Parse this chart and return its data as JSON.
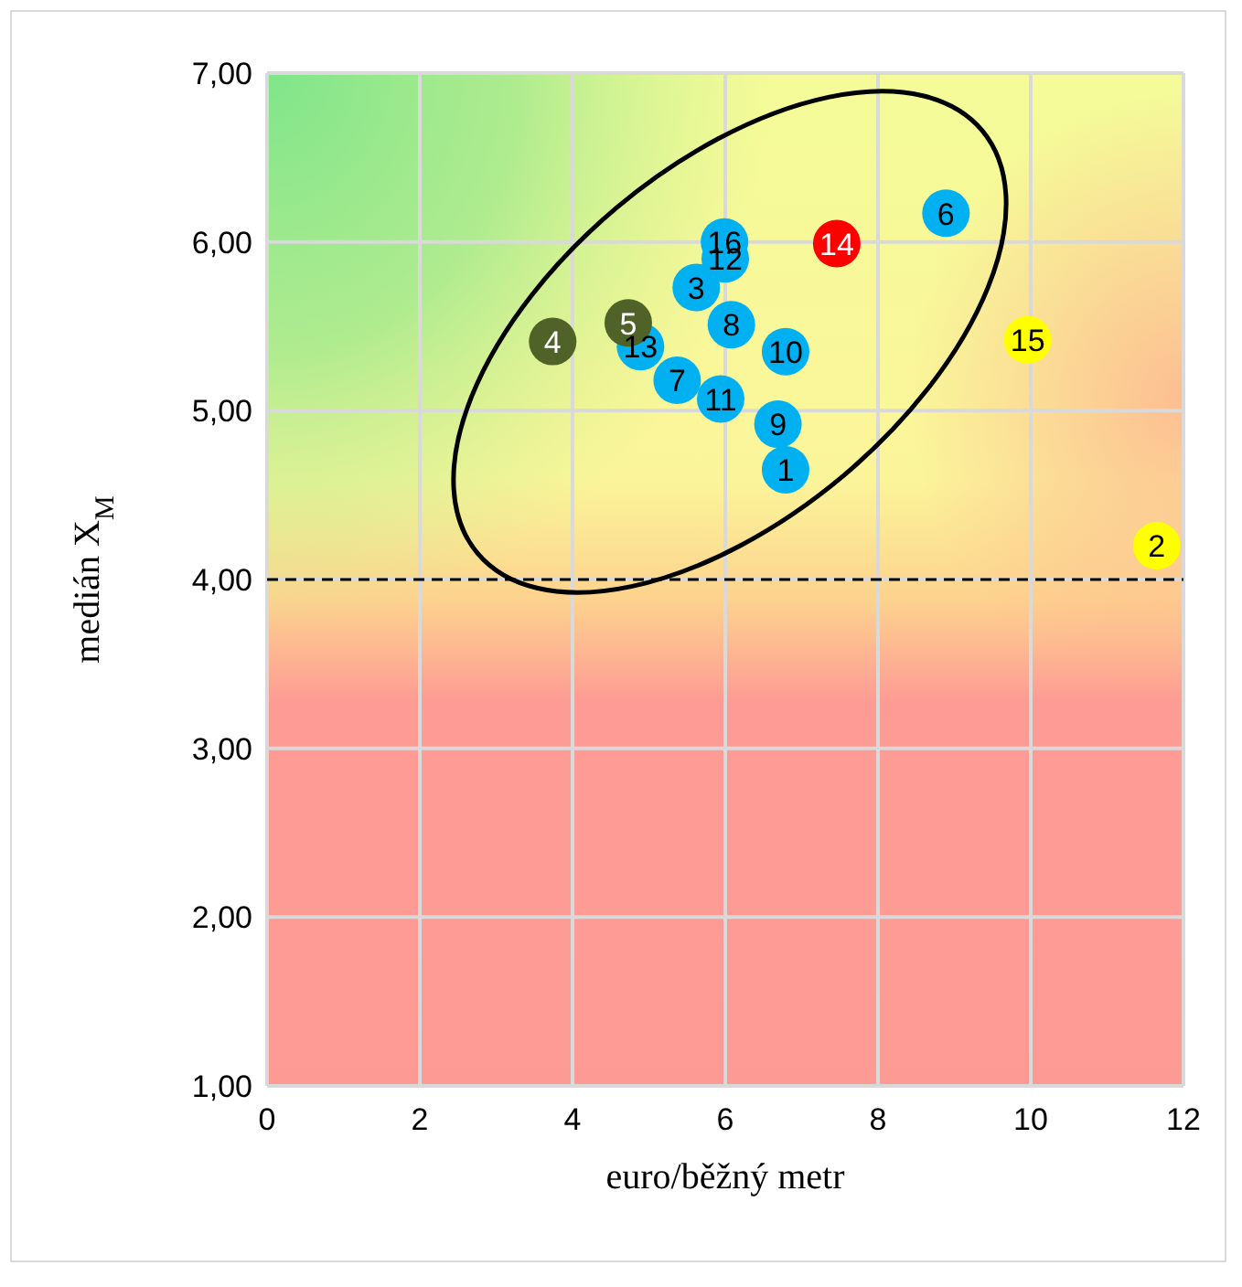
{
  "chart_data": {
    "type": "scatter",
    "xlabel": "euro/běžný metr",
    "ylabel": "medián X$_{M}$",
    "xlim": [
      0,
      12
    ],
    "xticks": [
      0,
      2,
      4,
      6,
      8,
      10,
      12
    ],
    "ylim": [
      1,
      7
    ],
    "yticks": [
      {
        "value": 1,
        "label": "1,00"
      },
      {
        "value": 2,
        "label": "2,00"
      },
      {
        "value": 3,
        "label": "3,00"
      },
      {
        "value": 4,
        "label": "4,00"
      },
      {
        "value": 5,
        "label": "5,00"
      },
      {
        "value": 6,
        "label": "6,00"
      },
      {
        "value": 7,
        "label": "7,00"
      }
    ],
    "grid": true,
    "marker": "circle",
    "series": [
      {
        "color": "#00b0f0",
        "x": [
          6.79,
          5.62,
          8.89,
          5.37,
          6.08,
          6.69,
          6.79,
          5.94,
          5.99,
          6.0,
          4.89
        ],
        "values": [
          4.65,
          5.73,
          6.17,
          5.18,
          5.51,
          4.92,
          5.35,
          5.07,
          6.0,
          5.9,
          5.38
        ]
      },
      {
        "color": "#4f6228",
        "x": [
          3.74,
          4.73
        ],
        "values": [
          5.41,
          5.52
        ]
      },
      {
        "color": "#ff0000",
        "x": [
          7.46
        ],
        "values": [
          5.99
        ]
      },
      {
        "color": "#ffff00",
        "x": [
          11.65,
          9.96
        ],
        "values": [
          4.2,
          5.42
        ]
      }
    ],
    "annotations": [
      {
        "text": "1",
        "x": 6.79,
        "y": 4.65
      },
      {
        "text": "3",
        "x": 5.62,
        "y": 5.73
      },
      {
        "text": "6",
        "x": 8.89,
        "y": 6.17
      },
      {
        "text": "7",
        "x": 5.37,
        "y": 5.18
      },
      {
        "text": "8",
        "x": 6.08,
        "y": 5.51
      },
      {
        "text": "9",
        "x": 6.69,
        "y": 4.92
      },
      {
        "text": "10",
        "x": 6.79,
        "y": 5.35
      },
      {
        "text": "11",
        "x": 5.94,
        "y": 5.07
      },
      {
        "text": "12",
        "x": 6.0,
        "y": 5.9
      },
      {
        "text": "13",
        "x": 4.89,
        "y": 5.38
      },
      {
        "text": "16",
        "x": 5.99,
        "y": 6.0
      },
      {
        "text": "4",
        "x": 3.74,
        "y": 5.41
      },
      {
        "text": "5",
        "x": 4.73,
        "y": 5.52
      },
      {
        "text": "14",
        "x": 7.46,
        "y": 5.99
      },
      {
        "text": "2",
        "x": 11.65,
        "y": 4.2
      },
      {
        "text": "15",
        "x": 9.96,
        "y": 5.42
      }
    ],
    "ref_lines": [
      {
        "axis": "y",
        "value": 4,
        "color": "#000000",
        "line_style": "dashed"
      }
    ]
  }
}
